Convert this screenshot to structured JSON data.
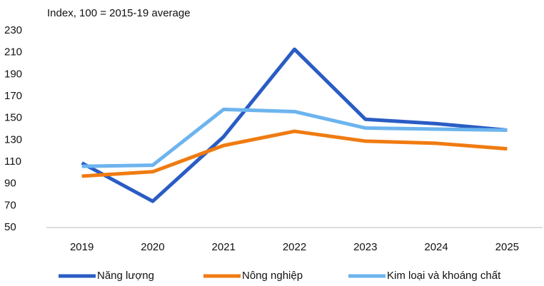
{
  "chart_data": {
    "type": "line",
    "y_axis_label": "Index, 100 = 2015-19 average",
    "categories": [
      "2019",
      "2020",
      "2021",
      "2022",
      "2023",
      "2024",
      "2025"
    ],
    "series": [
      {
        "name": "Năng lượng",
        "color": "#2a5cc4",
        "values": [
          109,
          74,
          133,
          213,
          149,
          145,
          139
        ]
      },
      {
        "name": "Nông nghiệp",
        "color": "#f07b12",
        "values": [
          97,
          101,
          125,
          138,
          129,
          127,
          122
        ]
      },
      {
        "name": "Kim loại và khoáng chất",
        "color": "#6cb4ee",
        "values": [
          106,
          107,
          158,
          156,
          141,
          140,
          139
        ]
      }
    ],
    "ylim": [
      50,
      230
    ],
    "yticks": [
      50,
      70,
      90,
      110,
      130,
      150,
      170,
      190,
      210,
      230
    ],
    "grid": false,
    "legend": "bottom"
  }
}
